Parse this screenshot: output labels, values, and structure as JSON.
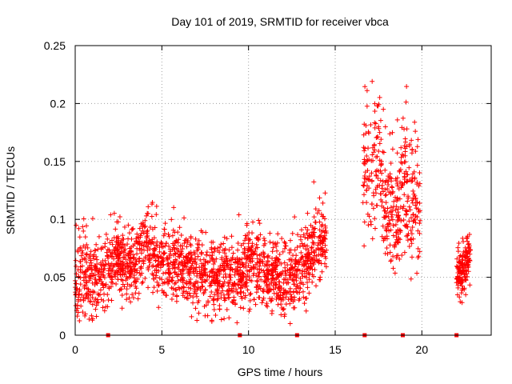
{
  "chart_data": {
    "type": "scatter",
    "title": "Day 101 of 2019, SRMTID for receiver vbca",
    "xlabel": "GPS time / hours",
    "ylabel": "SRMTID / TECUs",
    "xlim": [
      0,
      24
    ],
    "ylim": [
      0,
      0.25
    ],
    "x_ticks": [
      0,
      5,
      10,
      15,
      20
    ],
    "x_tick_labels": [
      "0",
      "5",
      "10",
      "15",
      "20"
    ],
    "y_ticks": [
      0,
      0.05,
      0.1,
      0.15,
      0.2,
      0.25
    ],
    "y_tick_labels": [
      "0",
      "0.05",
      "0.1",
      "0.15",
      "0.2",
      "0.25"
    ],
    "grid": true,
    "marker": "+",
    "color": "#ff0000",
    "zero_markers_x": [
      1.9,
      9.5,
      12.8,
      16.7,
      18.9,
      22.0
    ],
    "clusters": [
      {
        "x_range": [
          0.0,
          14.5
        ],
        "y_center": 0.055,
        "y_spread": 0.02,
        "n": 1800
      },
      {
        "x_range": [
          16.6,
          19.9
        ],
        "y_center": 0.12,
        "y_spread": 0.035,
        "n": 380
      },
      {
        "x_range": [
          22.0,
          22.8
        ],
        "y_center": 0.055,
        "y_spread": 0.015,
        "n": 140
      }
    ],
    "series": [
      {
        "name": "SRMTID",
        "x": [
          0.1,
          0.5,
          1.0,
          1.5,
          2.0,
          2.5,
          3.0,
          3.5,
          3.9,
          4.3,
          4.8,
          5.3,
          5.8,
          6.3,
          6.8,
          7.3,
          7.8,
          8.2,
          8.7,
          9.2,
          9.7,
          10.2,
          10.7,
          11.2,
          11.7,
          12.2,
          12.7,
          13.2,
          13.7,
          14.1,
          16.8,
          17.1,
          17.5,
          17.8,
          18.1,
          18.5,
          18.9,
          19.2,
          19.6,
          22.2,
          22.5,
          22.7
        ],
        "y": [
          0.04,
          0.05,
          0.045,
          0.055,
          0.06,
          0.07,
          0.06,
          0.065,
          0.09,
          0.08,
          0.06,
          0.065,
          0.07,
          0.06,
          0.055,
          0.05,
          0.045,
          0.04,
          0.05,
          0.045,
          0.05,
          0.07,
          0.065,
          0.055,
          0.05,
          0.045,
          0.05,
          0.06,
          0.08,
          0.085,
          0.15,
          0.14,
          0.18,
          0.11,
          0.09,
          0.08,
          0.13,
          0.12,
          0.1,
          0.05,
          0.06,
          0.075
        ]
      }
    ]
  }
}
